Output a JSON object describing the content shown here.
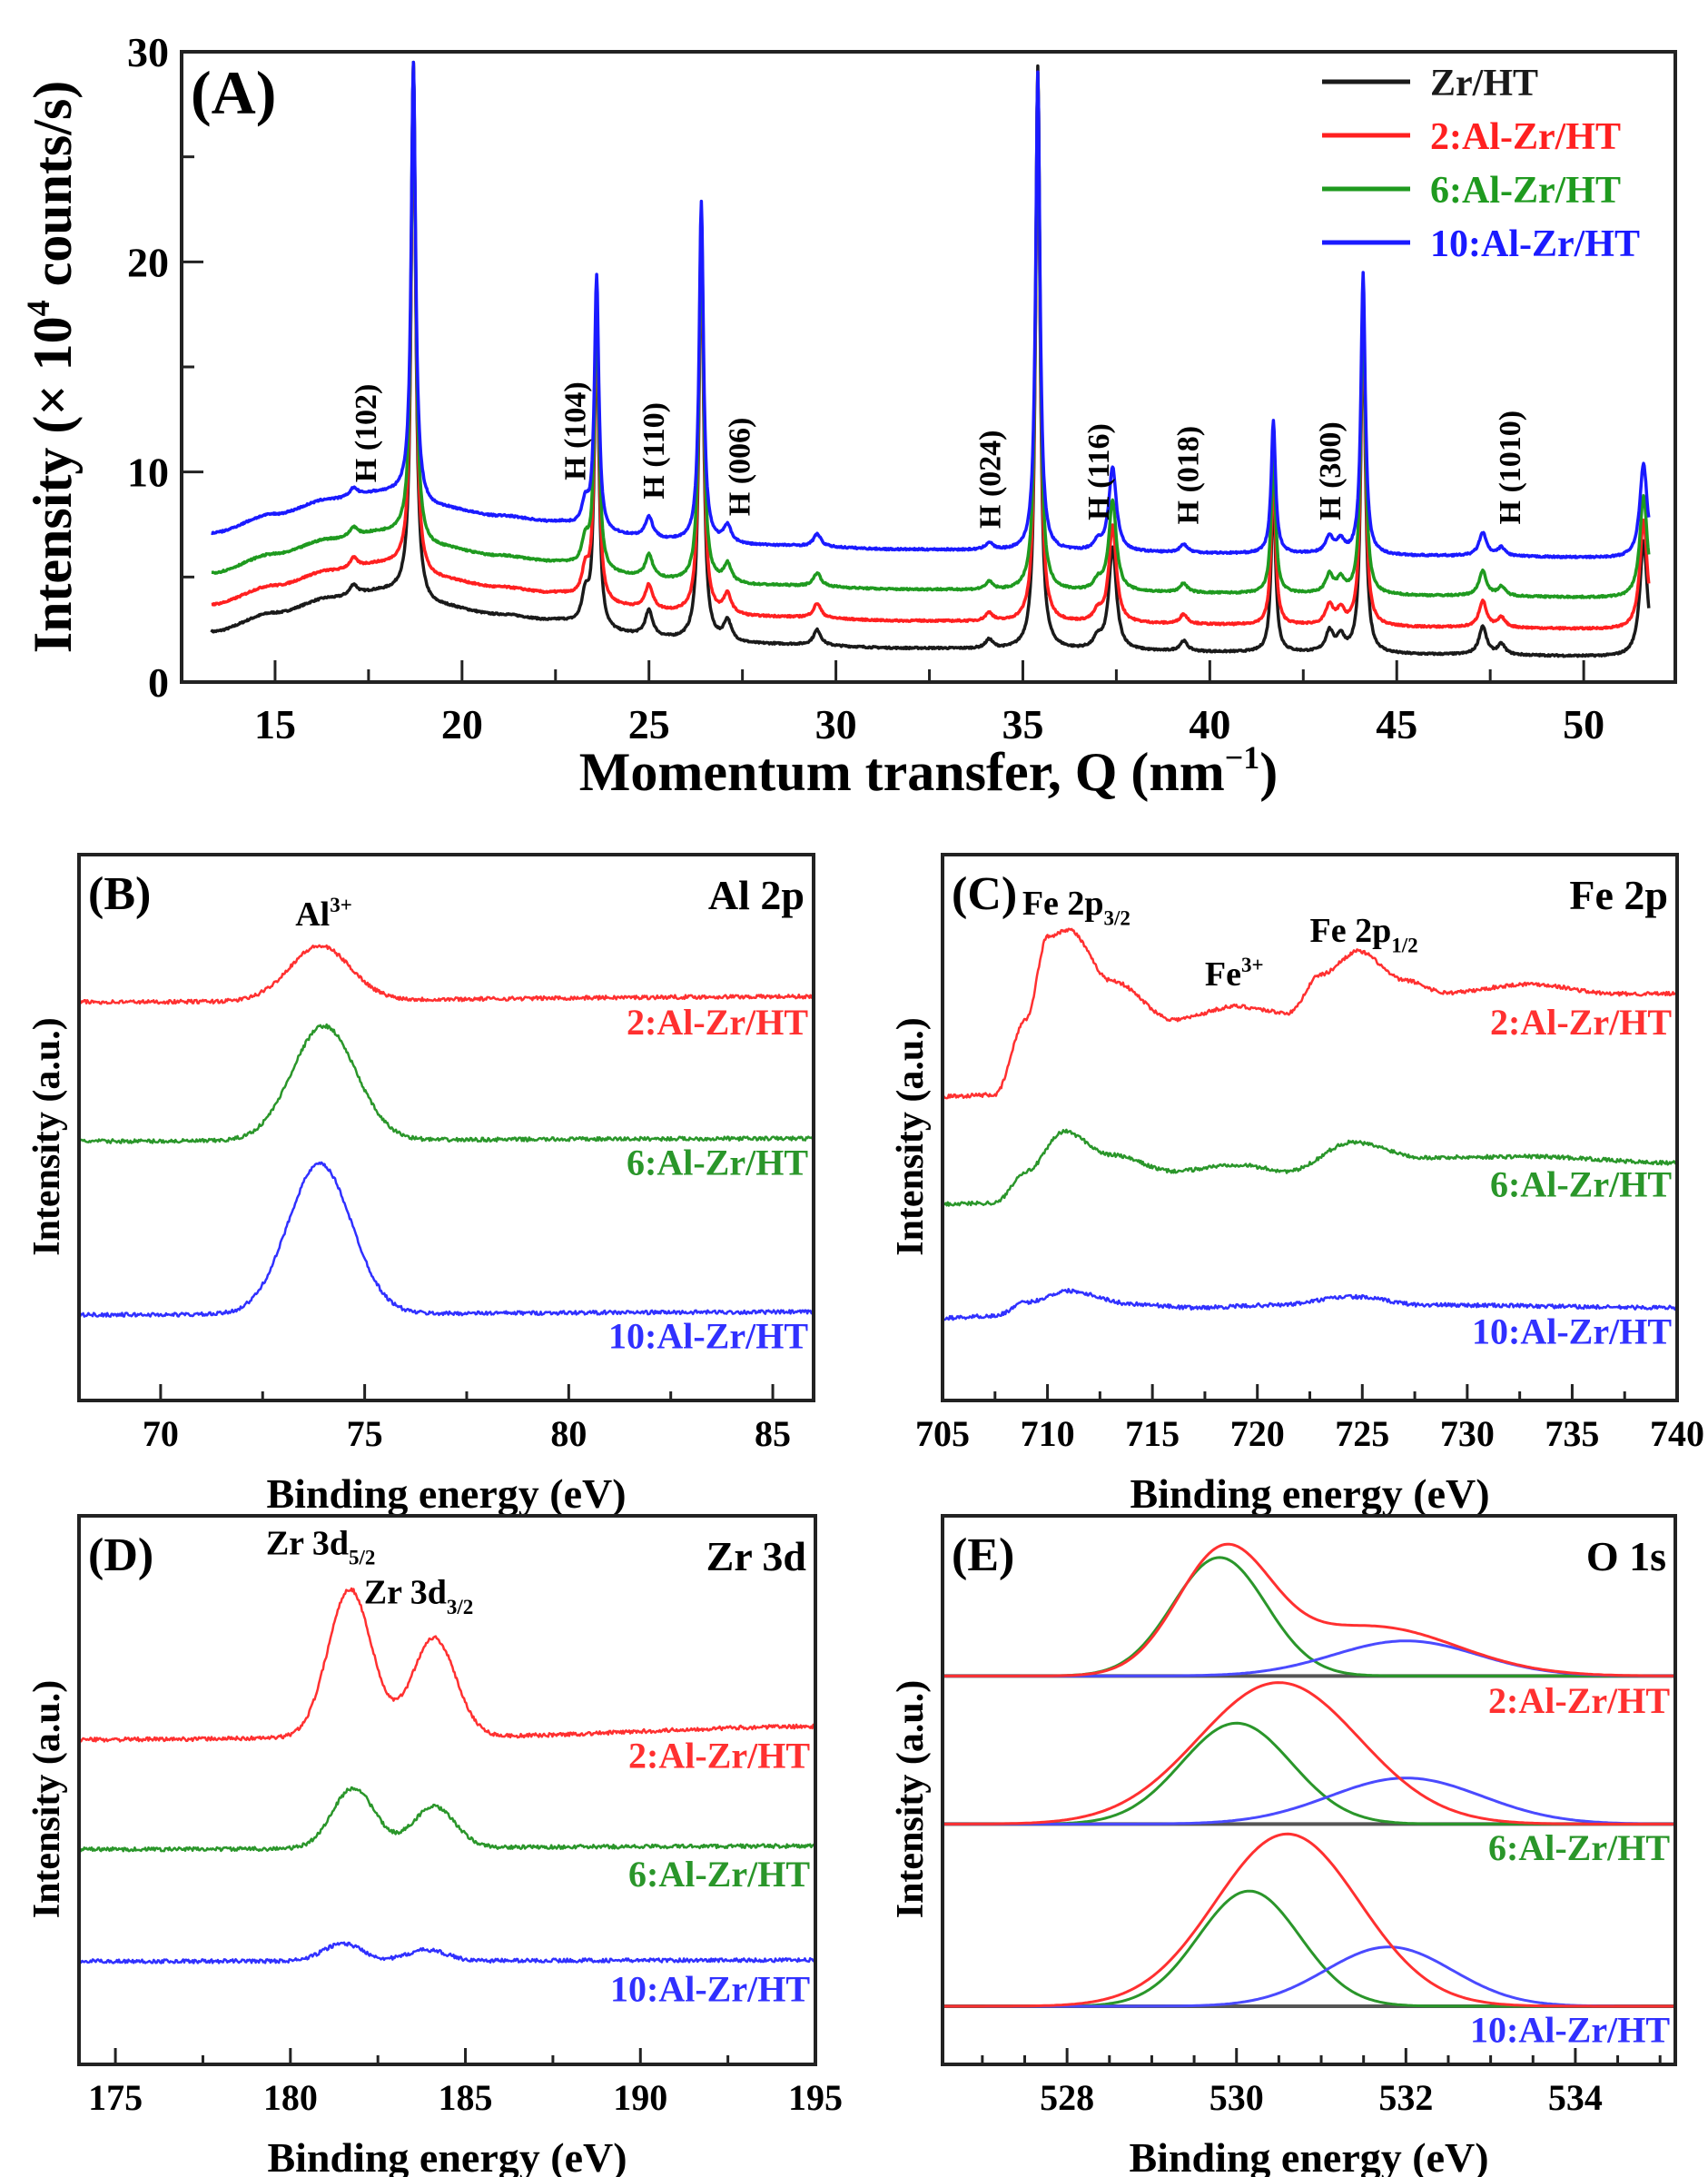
{
  "chart_data": [
    {
      "id": "A",
      "type": "line",
      "panel_label": "(A)",
      "xlabel": {
        "text": "Momentum transfer, Q (nm",
        "sup": "−1",
        "after": ")"
      },
      "ylabel": {
        "text": "Intensity (× 10",
        "sup": "4",
        "after": " counts/s)"
      },
      "xlim": [
        12.5,
        52.45
      ],
      "ylim": [
        0,
        30
      ],
      "xticks": [
        15,
        20,
        25,
        30,
        35,
        40,
        45,
        50
      ],
      "yticks": [
        0,
        10,
        20,
        30
      ],
      "legend": {
        "placement": "top-right",
        "entries": [
          {
            "label": "Zr/HT",
            "color": "#1a1a1a"
          },
          {
            "label": "2:Al-Zr/HT",
            "color": "#ff2020"
          },
          {
            "label": "6:Al-Zr/HT",
            "color": "#1f9a1f"
          },
          {
            "label": "10:Al-Zr/HT",
            "color": "#1a1aff"
          }
        ]
      },
      "baseline": [
        [
          13.3,
          2.4
        ],
        [
          15,
          3.3
        ],
        [
          16.5,
          4.0
        ],
        [
          17.8,
          4.3
        ],
        [
          18.3,
          4.3
        ],
        [
          19.3,
          3.6
        ],
        [
          21,
          3.2
        ],
        [
          22.5,
          2.9
        ],
        [
          23.8,
          2.3
        ],
        [
          26,
          2.0
        ],
        [
          28,
          1.8
        ],
        [
          32,
          1.6
        ],
        [
          36,
          1.5
        ],
        [
          42,
          1.4
        ],
        [
          46,
          1.3
        ],
        [
          51.7,
          1.2
        ]
      ],
      "peaks": [
        {
          "q": 17.1,
          "amp": 0.4
        },
        {
          "q": 18.7,
          "amp": 21
        },
        {
          "q": 23.3,
          "amp": 1.2
        },
        {
          "q": 23.6,
          "amp": 12.2
        },
        {
          "q": 25.0,
          "amp": 1.0
        },
        {
          "q": 26.4,
          "amp": 16.2
        },
        {
          "q": 27.1,
          "amp": 0.8
        },
        {
          "q": 29.5,
          "amp": 0.6
        },
        {
          "q": 34.1,
          "amp": 0.35
        },
        {
          "q": 35.4,
          "amp": 22.8
        },
        {
          "q": 37.0,
          "amp": 0.4
        },
        {
          "q": 37.4,
          "amp": 4.0
        },
        {
          "q": 39.3,
          "amp": 0.4
        },
        {
          "q": 41.7,
          "amp": 6.3
        },
        {
          "q": 43.2,
          "amp": 0.8
        },
        {
          "q": 43.5,
          "amp": 0.6
        },
        {
          "q": 44.1,
          "amp": 13.4
        },
        {
          "q": 47.3,
          "amp": 1.1
        },
        {
          "q": 47.8,
          "amp": 0.4
        },
        {
          "q": 51.6,
          "amp": 4.5
        }
      ],
      "series": [
        {
          "name": "Zr/HT",
          "color": "#1a1a1a",
          "offset": 0,
          "peak_scale": 1.22
        },
        {
          "name": "2:Al-Zr/HT",
          "color": "#ff2020",
          "offset": 1.3,
          "peak_scale": 1.15
        },
        {
          "name": "6:Al-Zr/HT",
          "color": "#1f9a1f",
          "offset": 2.8,
          "peak_scale": 1.08
        },
        {
          "name": "10:Al-Zr/HT",
          "color": "#1a1aff",
          "offset": 4.7,
          "peak_scale": 1.0
        }
      ],
      "annotations": [
        {
          "text": "H (102)",
          "x": 17.4,
          "y": 9.5
        },
        {
          "text": "H (104)",
          "x": 23.0,
          "y": 9.6
        },
        {
          "text": "H (110)",
          "x": 25.1,
          "y": 8.7
        },
        {
          "text": "H (006)",
          "x": 27.4,
          "y": 7.9
        },
        {
          "text": "H (024)",
          "x": 34.1,
          "y": 7.3
        },
        {
          "text": "H (116)",
          "x": 37.0,
          "y": 7.7
        },
        {
          "text": "H (018)",
          "x": 39.4,
          "y": 7.5
        },
        {
          "text": "H (300)",
          "x": 43.2,
          "y": 7.7
        },
        {
          "text": "H (1010)",
          "x": 48.0,
          "y": 7.5
        }
      ]
    },
    {
      "id": "B",
      "type": "line",
      "panel_label": "(B)",
      "title": "Al 2p",
      "xlabel": "Binding energy (eV)",
      "ylabel": "Intensity (a.u.)",
      "xlim": [
        68,
        86
      ],
      "ylim": [
        0,
        1
      ],
      "xticks": [
        70,
        75,
        80,
        85
      ],
      "annotations": [
        {
          "text": "Al",
          "sup": "3+",
          "x": 73.3,
          "y": 0.87
        }
      ],
      "series": [
        {
          "name": "2:Al-Zr/HT",
          "color": "#ff3030",
          "baseline": [
            [
              68,
              0.73
            ],
            [
              86,
              0.74
            ]
          ],
          "peaks": [
            [
              73.9,
              0.1,
              0.75
            ]
          ]
        },
        {
          "name": "6:Al-Zr/HT",
          "color": "#2a962a",
          "baseline": [
            [
              68,
              0.475
            ],
            [
              86,
              0.48
            ]
          ],
          "peaks": [
            [
              74.0,
              0.21,
              0.78
            ]
          ]
        },
        {
          "name": "10:Al-Zr/HT",
          "color": "#3030ff",
          "baseline": [
            [
              68,
              0.157
            ],
            [
              86,
              0.162
            ]
          ],
          "peaks": [
            [
              73.9,
              0.275,
              0.78
            ]
          ]
        }
      ]
    },
    {
      "id": "C",
      "type": "line",
      "panel_label": "(C)",
      "title": "Fe 2p",
      "xlabel": "Binding energy (eV)",
      "ylabel": "Intensity (a.u.)",
      "xlim": [
        705,
        740
      ],
      "ylim": [
        0,
        1
      ],
      "xticks": [
        705,
        710,
        715,
        720,
        725,
        730,
        735,
        740
      ],
      "annotations": [
        {
          "text": "Fe 2p",
          "sub": "3/2",
          "x": 708.8,
          "y": 0.89
        },
        {
          "text": "Fe",
          "sup": "3+",
          "x": 717.5,
          "y": 0.76
        },
        {
          "text": "Fe 2p",
          "sub": "1/2",
          "x": 722.5,
          "y": 0.84
        }
      ],
      "series": [
        {
          "name": "2:Al-Zr/HT",
          "color": "#ff3030",
          "points": [
            [
              705,
              0.557
            ],
            [
              707.5,
              0.56
            ],
            [
              709,
              0.7
            ],
            [
              710,
              0.85
            ],
            [
              711,
              0.863
            ],
            [
              713,
              0.77
            ],
            [
              716,
              0.698
            ],
            [
              719,
              0.722
            ],
            [
              721.5,
              0.71
            ],
            [
              723,
              0.78
            ],
            [
              724.8,
              0.823
            ],
            [
              727,
              0.77
            ],
            [
              729,
              0.747
            ],
            [
              733,
              0.763
            ],
            [
              737,
              0.745
            ],
            [
              740,
              0.745
            ]
          ]
        },
        {
          "name": "6:Al-Zr/HT",
          "color": "#2a962a",
          "points": [
            [
              705,
              0.36
            ],
            [
              707.5,
              0.362
            ],
            [
              709,
              0.42
            ],
            [
              710.8,
              0.493
            ],
            [
              713,
              0.45
            ],
            [
              716,
              0.42
            ],
            [
              719,
              0.432
            ],
            [
              721.5,
              0.42
            ],
            [
              724.5,
              0.473
            ],
            [
              728,
              0.445
            ],
            [
              733,
              0.447
            ],
            [
              740,
              0.435
            ]
          ]
        },
        {
          "name": "10:Al-Zr/HT",
          "color": "#3030ff",
          "points": [
            [
              705,
              0.151
            ],
            [
              707.5,
              0.155
            ],
            [
              709,
              0.18
            ],
            [
              711,
              0.201
            ],
            [
              714,
              0.177
            ],
            [
              717,
              0.17
            ],
            [
              721,
              0.175
            ],
            [
              724.5,
              0.19
            ],
            [
              728,
              0.175
            ],
            [
              740,
              0.17
            ]
          ]
        }
      ]
    },
    {
      "id": "D",
      "type": "line",
      "panel_label": "(D)",
      "title": "Zr 3d",
      "xlabel": "Binding energy (eV)",
      "ylabel": "Intensity (a.u.)",
      "xlim": [
        173.96,
        195
      ],
      "ylim": [
        0,
        1
      ],
      "xticks": [
        175,
        180,
        185,
        190,
        195
      ],
      "annotations": [
        {
          "text": "Zr 3d",
          "sub": "5/2",
          "x": 179.3,
          "y": 0.93
        },
        {
          "text": "Zr 3d",
          "sub": "3/2",
          "x": 182.1,
          "y": 0.84
        }
      ],
      "series": [
        {
          "name": "2:Al-Zr/HT",
          "color": "#ff3030",
          "baseline": [
            [
              173.96,
              0.592
            ],
            [
              185,
              0.598
            ],
            [
              195,
              0.616
            ]
          ],
          "peaks": [
            [
              181.7,
              0.27,
              0.62
            ],
            [
              184.1,
              0.18,
              0.62
            ]
          ]
        },
        {
          "name": "6:Al-Zr/HT",
          "color": "#2a962a",
          "baseline": [
            [
              173.96,
              0.392
            ],
            [
              195,
              0.398
            ]
          ],
          "peaks": [
            [
              181.8,
              0.11,
              0.6
            ],
            [
              184.1,
              0.075,
              0.6
            ]
          ]
        },
        {
          "name": "10:Al-Zr/HT",
          "color": "#3030ff",
          "baseline": [
            [
              173.96,
              0.188
            ],
            [
              195,
              0.19
            ]
          ],
          "peaks": [
            [
              181.5,
              0.032,
              0.55
            ],
            [
              183.9,
              0.02,
              0.55
            ]
          ]
        }
      ]
    },
    {
      "id": "E",
      "type": "line",
      "panel_label": "(E)",
      "title": "O 1s",
      "xlabel": "Binding energy (eV)",
      "ylabel": "Intensity (a.u.)",
      "xlim": [
        526.53,
        535.18
      ],
      "ylim": [
        0,
        1
      ],
      "xticks": [
        528,
        530,
        532,
        534
      ],
      "groups": [
        {
          "name": "2:Al-Zr/HT",
          "label_color": "#ff3030",
          "baseline": 0.708,
          "components": [
            {
              "role": "background",
              "color": "#555555",
              "peaks": []
            },
            {
              "role": "lattice-oxygen",
              "color": "#2a962a",
              "peaks": [
                [
                  529.8,
                  0.216,
                  0.55
                ]
              ]
            },
            {
              "role": "surface-oxygen",
              "color": "#4a4aff",
              "peaks": [
                [
                  532.0,
                  0.064,
                  0.85
                ]
              ]
            },
            {
              "role": "envelope",
              "color": "#ff3030",
              "peaks": [
                [
                  529.85,
                  0.22,
                  0.55
                ],
                [
                  531.6,
                  0.09,
                  1.0
                ]
              ]
            }
          ]
        },
        {
          "name": "6:Al-Zr/HT",
          "label_color": "#2a962a",
          "baseline": 0.438,
          "components": [
            {
              "role": "background",
              "color": "#555555",
              "peaks": []
            },
            {
              "role": "lattice-oxygen",
              "color": "#2a962a",
              "peaks": [
                [
                  530.0,
                  0.184,
                  0.65
                ]
              ]
            },
            {
              "role": "surface-oxygen",
              "color": "#4a4aff",
              "peaks": [
                [
                  532.0,
                  0.084,
                  0.9
                ]
              ]
            },
            {
              "role": "envelope",
              "color": "#ff3030",
              "peaks": [
                [
                  530.5,
                  0.258,
                  0.95
                ]
              ]
            }
          ]
        },
        {
          "name": "10:Al-Zr/HT",
          "label_color": "#3030ff",
          "baseline": 0.106,
          "components": [
            {
              "role": "background",
              "color": "#555555",
              "peaks": []
            },
            {
              "role": "lattice-oxygen",
              "color": "#2a962a",
              "peaks": [
                [
                  530.15,
                  0.21,
                  0.6
                ]
              ]
            },
            {
              "role": "surface-oxygen",
              "color": "#4a4aff",
              "peaks": [
                [
                  531.8,
                  0.108,
                  0.75
                ]
              ]
            },
            {
              "role": "envelope",
              "color": "#ff3030",
              "peaks": [
                [
                  530.6,
                  0.314,
                  0.85
                ]
              ]
            }
          ]
        }
      ]
    }
  ]
}
